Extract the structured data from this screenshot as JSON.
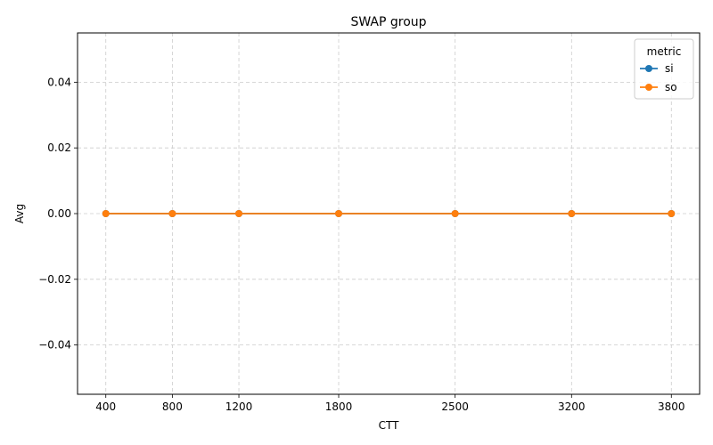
{
  "chart_data": {
    "type": "line",
    "title": "SWAP group",
    "xlabel": "CTT",
    "ylabel": "Avg",
    "x": [
      400,
      800,
      1200,
      1800,
      2500,
      3200,
      3800
    ],
    "x_tick_labels": [
      "400",
      "800",
      "1200",
      "1800",
      "2500",
      "3200",
      "3800"
    ],
    "xlim": [
      230,
      3970
    ],
    "ylim": [
      -0.055,
      0.055
    ],
    "y_ticks": [
      -0.04,
      -0.02,
      0.0,
      0.02,
      0.04
    ],
    "y_tick_labels": [
      "−0.04",
      "−0.02",
      "0.00",
      "0.02",
      "0.04"
    ],
    "series": [
      {
        "name": "si",
        "color": "#1f77b4",
        "values": [
          0,
          0,
          0,
          0,
          0,
          0,
          0
        ]
      },
      {
        "name": "so",
        "color": "#ff7f0e",
        "values": [
          0,
          0,
          0,
          0,
          0,
          0,
          0
        ]
      }
    ],
    "legend": {
      "title": "metric",
      "placement": "top-right"
    },
    "grid": true,
    "grid_style": "dashed"
  }
}
